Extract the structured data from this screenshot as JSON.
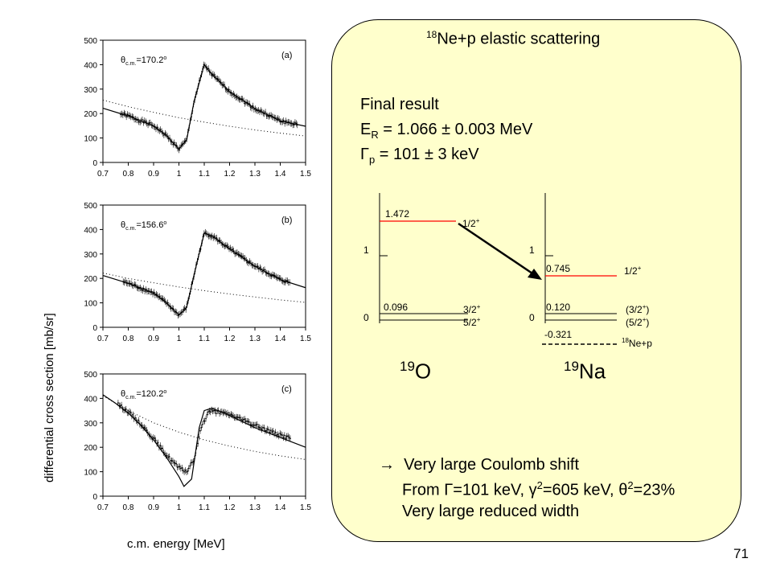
{
  "y_axis_label": "differential cross section [mb/sr]",
  "x_axis_label": "c.m. energy [MeV]",
  "page_number": "71",
  "panel": {
    "title_sup": "18",
    "title": "Ne+p elastic scattering",
    "final_result_label": "Final result",
    "er_symbol": "E",
    "er_sub": "R",
    "er_value": " = 1.066 ± 0.003 MeV",
    "gp_symbol": "Γ",
    "gp_sub": "p",
    "gp_value": " = 101 ± 3 keV",
    "arrow_bullet": "→",
    "line1": "Very large Coulomb shift",
    "line2_a": "From ",
    "line2_gamma": "Γ",
    "line2_b": "=101 keV, ",
    "line2_g2": "γ",
    "line2_c": "=605 keV, ",
    "line2_t2": "θ",
    "line2_d": "=23%",
    "line2_sq": "2",
    "line3": "Very large reduced width"
  },
  "level_scheme": {
    "o19": {
      "mass": "19",
      "symbol": "O",
      "axis_tick_1": "1",
      "axis_tick_0": "0",
      "level_high_energy": "1.472",
      "level_high_spin": "1/2",
      "level_low_energy": "0.096",
      "level_low_spin1": "3/2",
      "level_low_spin2": "5/2",
      "parity": "+"
    },
    "na19": {
      "mass": "19",
      "symbol": "Na",
      "axis_tick_1": "1",
      "axis_tick_0": "0",
      "level_high_energy": "0.745",
      "level_high_spin": "1/2",
      "level_low_energy": "0.120",
      "level_low_spin1": "(3/2",
      "level_low_spin2": "(5/2",
      "close_paren": ")",
      "parity": "+",
      "threshold_energy": "-0.321",
      "threshold_sup": "18",
      "threshold_label": "Ne+p"
    }
  },
  "chart_data": [
    {
      "type": "scatter",
      "panel_label": "(a)",
      "angle_text": "=170.2",
      "angle_sub": "c.m.",
      "angle_prefix": "θ",
      "degree": "o",
      "x_ticks": [
        "0.7",
        "0.8",
        "0.9",
        "1",
        "1.1",
        "1.2",
        "1.3",
        "1.4",
        "1.5"
      ],
      "y_ticks": [
        "0",
        "100",
        "200",
        "300",
        "400",
        "500"
      ],
      "xlim": [
        0.7,
        1.5
      ],
      "ylim": [
        0,
        500
      ],
      "fit_curve": [
        [
          0.7,
          222
        ],
        [
          0.8,
          190
        ],
        [
          0.9,
          150
        ],
        [
          0.95,
          110
        ],
        [
          1.0,
          55
        ],
        [
          1.03,
          90
        ],
        [
          1.06,
          250
        ],
        [
          1.1,
          400
        ],
        [
          1.13,
          360
        ],
        [
          1.2,
          290
        ],
        [
          1.3,
          220
        ],
        [
          1.4,
          170
        ],
        [
          1.5,
          148
        ]
      ],
      "coulomb_curve": [
        [
          0.7,
          255
        ],
        [
          0.8,
          228
        ],
        [
          0.9,
          205
        ],
        [
          1.0,
          183
        ],
        [
          1.1,
          165
        ],
        [
          1.2,
          148
        ],
        [
          1.3,
          133
        ],
        [
          1.4,
          120
        ],
        [
          1.5,
          108
        ]
      ],
      "data_range": [
        0.77,
        1.47
      ]
    },
    {
      "type": "scatter",
      "panel_label": "(b)",
      "angle_text": "=156.6",
      "angle_sub": "c.m.",
      "angle_prefix": "θ",
      "degree": "o",
      "x_ticks": [
        "0.7",
        "0.8",
        "0.9",
        "1",
        "1.1",
        "1.2",
        "1.3",
        "1.4",
        "1.5"
      ],
      "y_ticks": [
        "0",
        "100",
        "200",
        "300",
        "400",
        "500"
      ],
      "xlim": [
        0.7,
        1.5
      ],
      "ylim": [
        0,
        500
      ],
      "fit_curve": [
        [
          0.7,
          212
        ],
        [
          0.8,
          180
        ],
        [
          0.9,
          140
        ],
        [
          0.95,
          100
        ],
        [
          1.0,
          50
        ],
        [
          1.03,
          80
        ],
        [
          1.07,
          260
        ],
        [
          1.1,
          385
        ],
        [
          1.13,
          375
        ],
        [
          1.2,
          320
        ],
        [
          1.3,
          250
        ],
        [
          1.4,
          195
        ],
        [
          1.5,
          162
        ]
      ],
      "coulomb_curve": [
        [
          0.7,
          222
        ],
        [
          0.8,
          200
        ],
        [
          0.9,
          182
        ],
        [
          1.0,
          165
        ],
        [
          1.1,
          150
        ],
        [
          1.2,
          136
        ],
        [
          1.3,
          124
        ],
        [
          1.4,
          112
        ],
        [
          1.5,
          102
        ]
      ],
      "data_range": [
        0.78,
        1.44
      ]
    },
    {
      "type": "scatter",
      "panel_label": "(c)",
      "angle_text": "=120.2",
      "angle_sub": "c.m.",
      "angle_prefix": "θ",
      "degree": "o",
      "x_ticks": [
        "0.7",
        "0.8",
        "0.9",
        "1",
        "1.1",
        "1.2",
        "1.3",
        "1.4",
        "1.5"
      ],
      "y_ticks": [
        "0",
        "100",
        "200",
        "300",
        "400",
        "500"
      ],
      "xlim": [
        0.7,
        1.5
      ],
      "ylim": [
        0,
        500
      ],
      "fit_curve": [
        [
          0.7,
          415
        ],
        [
          0.75,
          380
        ],
        [
          0.8,
          340
        ],
        [
          0.85,
          290
        ],
        [
          0.9,
          230
        ],
        [
          0.95,
          160
        ],
        [
          1.0,
          80
        ],
        [
          1.02,
          40
        ],
        [
          1.05,
          70
        ],
        [
          1.08,
          280
        ],
        [
          1.1,
          350
        ],
        [
          1.13,
          360
        ],
        [
          1.2,
          330
        ],
        [
          1.3,
          280
        ],
        [
          1.4,
          240
        ],
        [
          1.5,
          200
        ]
      ],
      "coulomb_curve": [
        [
          0.7,
          410
        ],
        [
          0.8,
          350
        ],
        [
          0.9,
          300
        ],
        [
          1.0,
          262
        ],
        [
          1.1,
          230
        ],
        [
          1.2,
          205
        ],
        [
          1.3,
          183
        ],
        [
          1.4,
          165
        ],
        [
          1.5,
          150
        ]
      ],
      "data_curve": [
        [
          0.75,
          385
        ],
        [
          0.8,
          345
        ],
        [
          0.85,
          295
        ],
        [
          0.9,
          235
        ],
        [
          0.95,
          170
        ],
        [
          1.0,
          115
        ],
        [
          1.03,
          100
        ],
        [
          1.06,
          150
        ],
        [
          1.09,
          290
        ],
        [
          1.12,
          350
        ],
        [
          1.2,
          335
        ],
        [
          1.3,
          290
        ],
        [
          1.4,
          250
        ],
        [
          1.45,
          235
        ]
      ],
      "data_range": [
        0.76,
        1.44
      ]
    }
  ]
}
